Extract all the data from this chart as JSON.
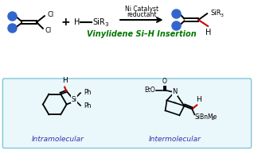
{
  "bg_color": "#ffffff",
  "bottom_bg": "#eaf7fb",
  "bottom_border": "#80c8d8",
  "blue_dot": "#3366cc",
  "green_text_color": "#007700",
  "blue_label_color": "#3333aa",
  "red_bond_color": "#cc0000",
  "arrow_color": "#000000",
  "title": "Vinylidene Si–H Insertion",
  "label_intramolecular": "Intramolecular",
  "label_intermolecular": "Intermolecular",
  "ni_catalyst_line1": "Ni Catalyst",
  "ni_catalyst_line2": "reductant",
  "cl1": "Cl",
  "cl2": "Cl",
  "h_prod": "H",
  "ph1": "Ph",
  "ph2": "Ph",
  "si_label": "Si",
  "h_red": "H",
  "eto_label": "EtO",
  "n_label": "N",
  "o_label": "O",
  "h_inter": "h",
  "sibnme2": "SiBnMe",
  "sibnme2_sub": "2"
}
